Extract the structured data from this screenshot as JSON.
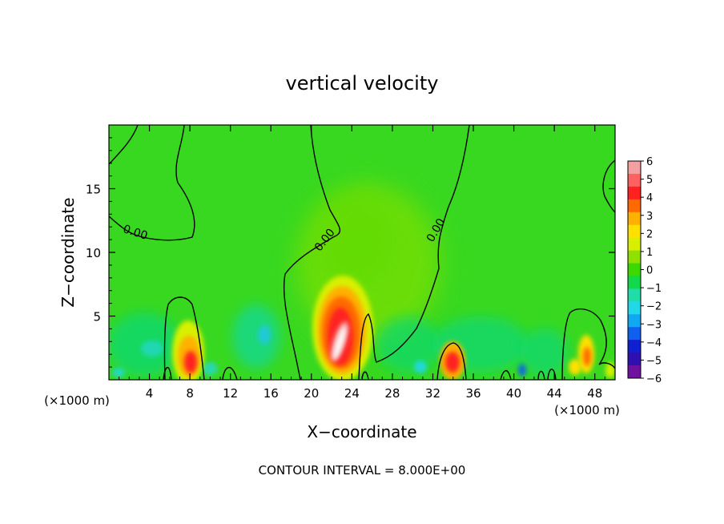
{
  "chart_data": {
    "type": "heatmap",
    "title": "vertical velocity",
    "xlabel": "X−coordinate",
    "ylabel": "Z−coordinate",
    "x_unit_left": "(×1000 m)",
    "x_unit_right": "(×1000 m)",
    "xlim": [
      0,
      50
    ],
    "ylim": [
      0,
      20
    ],
    "x_ticks": [
      4,
      8,
      12,
      16,
      20,
      24,
      28,
      32,
      36,
      40,
      44,
      48
    ],
    "y_ticks": [
      5,
      10,
      15
    ],
    "contour_interval_text": "CONTOUR INTERVAL =  8.000E+00",
    "contour_labels": [
      {
        "text": "0.00",
        "x": 2.5,
        "y": 11.3
      },
      {
        "text": "0.00",
        "x": 21.6,
        "y": 10.8
      },
      {
        "text": "0.00",
        "x": 32.6,
        "y": 11.6
      }
    ],
    "colorbar": {
      "min": -6,
      "max": 6,
      "labels": [
        "6",
        "5",
        "4",
        "3",
        "2",
        "1",
        "0",
        "−1",
        "−2",
        "−3",
        "−4",
        "−5",
        "−6"
      ],
      "colors": [
        "#f4a0a0",
        "#ff6060",
        "#ff2020",
        "#ff6a00",
        "#ffb000",
        "#ffe000",
        "#d8f000",
        "#90e000",
        "#3cd800",
        "#10d848",
        "#20dca8",
        "#20d8e8",
        "#10a8f0",
        "#1060f0",
        "#1020d0",
        "#3010b0",
        "#7010a0"
      ]
    },
    "features": [
      {
        "type": "updraft",
        "x": 8.0,
        "z": 1.2,
        "peak": 5
      },
      {
        "type": "updraft",
        "x": 22.4,
        "z": 3.0,
        "peak": 6
      },
      {
        "type": "updraft",
        "x": 33.6,
        "z": 1.2,
        "peak": 4
      },
      {
        "type": "updraft",
        "x": 47.0,
        "z": 1.5,
        "peak": 3
      },
      {
        "type": "downdraft",
        "x": 15.0,
        "z": 3.0,
        "peak": -2
      },
      {
        "type": "downdraft",
        "x": 40.8,
        "z": 0.5,
        "peak": -3
      }
    ]
  }
}
